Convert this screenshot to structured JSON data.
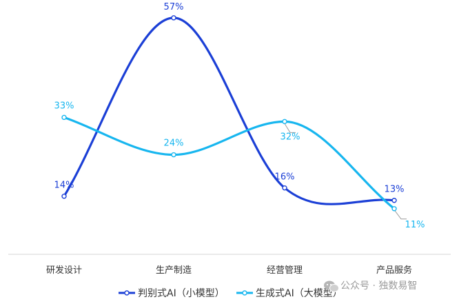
{
  "chart_data": {
    "type": "line",
    "smooth": true,
    "categories": [
      "研发设计",
      "生产制造",
      "经营管理",
      "产品服务"
    ],
    "series": [
      {
        "name": "判别式AI（小模型）",
        "values": [
          14,
          57,
          16,
          13
        ],
        "labels": [
          "14%",
          "57%",
          "16%",
          "13%"
        ],
        "color": "#1b3fd6"
      },
      {
        "name": "生成式AI（大模型）",
        "values": [
          33,
          24,
          32,
          11
        ],
        "labels": [
          "33%",
          "24%",
          "32%",
          "11%"
        ],
        "color": "#17b6ef"
      }
    ],
    "ylim": [
      0,
      60
    ],
    "grid": false,
    "legend": "bottom-center"
  },
  "watermark": {
    "text": "公众号 · 独数易智"
  }
}
